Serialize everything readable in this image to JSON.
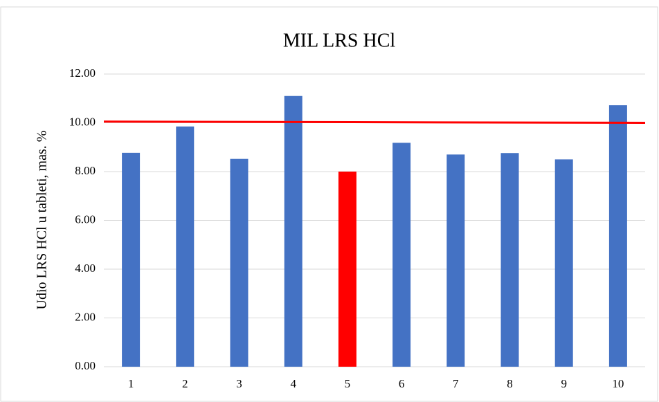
{
  "chart_data": {
    "type": "bar",
    "title": "MIL LRS HCl",
    "y_label": "Udio LRS HCl u tableti, mas. %",
    "categories": [
      "1",
      "2",
      "3",
      "4",
      "5",
      "6",
      "7",
      "8",
      "9",
      "10"
    ],
    "values": [
      8.77,
      9.85,
      8.52,
      11.1,
      8.0,
      9.18,
      8.7,
      8.76,
      8.5,
      10.72
    ],
    "colors": [
      "#4472c4",
      "#4472c4",
      "#4472c4",
      "#4472c4",
      "#ff0000",
      "#4472c4",
      "#4472c4",
      "#4472c4",
      "#4472c4",
      "#4472c4"
    ],
    "reference_line": {
      "values": [
        10.05,
        10.0
      ],
      "color": "#ff0000"
    },
    "ylim": [
      0,
      12
    ],
    "yticks": [
      {
        "value": 0,
        "label": "0.00"
      },
      {
        "value": 2,
        "label": "2.00"
      },
      {
        "value": 4,
        "label": "4.00"
      },
      {
        "value": 6,
        "label": "6.00"
      },
      {
        "value": 8,
        "label": "8.00"
      },
      {
        "value": 10,
        "label": "10.00"
      },
      {
        "value": 12,
        "label": "12.00"
      }
    ],
    "grid": true
  }
}
